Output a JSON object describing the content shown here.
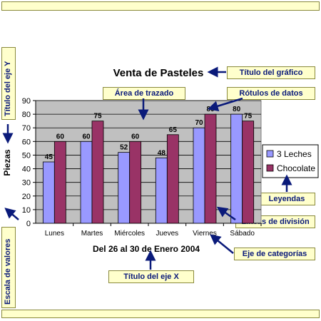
{
  "callouts": {
    "titulo_grafico": "Título del gráfico",
    "area_trazado": "Área de trazado",
    "rotulos_datos": "Rótulos de datos",
    "leyendas": "Leyendas",
    "lineas_division": "Líneas de división",
    "eje_categorias": "Eje de categorías",
    "titulo_eje_x": "Título del eje X",
    "titulo_eje_y": "Título del eje Y",
    "escala_valores": "Escala de valores"
  },
  "colors": {
    "callout_bg": "#ffffcc",
    "callout_text": "#0a1a7a",
    "arrow": "#0a1a7a",
    "plot_bg": "#c0c0c0",
    "series_1": "#9999ff",
    "series_2": "#993366"
  },
  "chart_data": {
    "type": "bar",
    "title": "Venta de Pasteles",
    "xlabel": "Del 26 al 30 de Enero 2004",
    "ylabel": "Piezas",
    "categories": [
      "Lunes",
      "Martes",
      "Miércoles",
      "Jueves",
      "Viernes",
      "Sábado"
    ],
    "series": [
      {
        "name": "3 Leches",
        "values": [
          45,
          60,
          52,
          48,
          70,
          80
        ]
      },
      {
        "name": "Chocolate",
        "values": [
          60,
          75,
          60,
          65,
          80,
          75
        ]
      }
    ],
    "ylim": [
      0,
      90
    ],
    "yticks": [
      0,
      10,
      20,
      30,
      40,
      50,
      60,
      70,
      80,
      90
    ],
    "grid": true,
    "legend": "right",
    "data_labels": true
  }
}
